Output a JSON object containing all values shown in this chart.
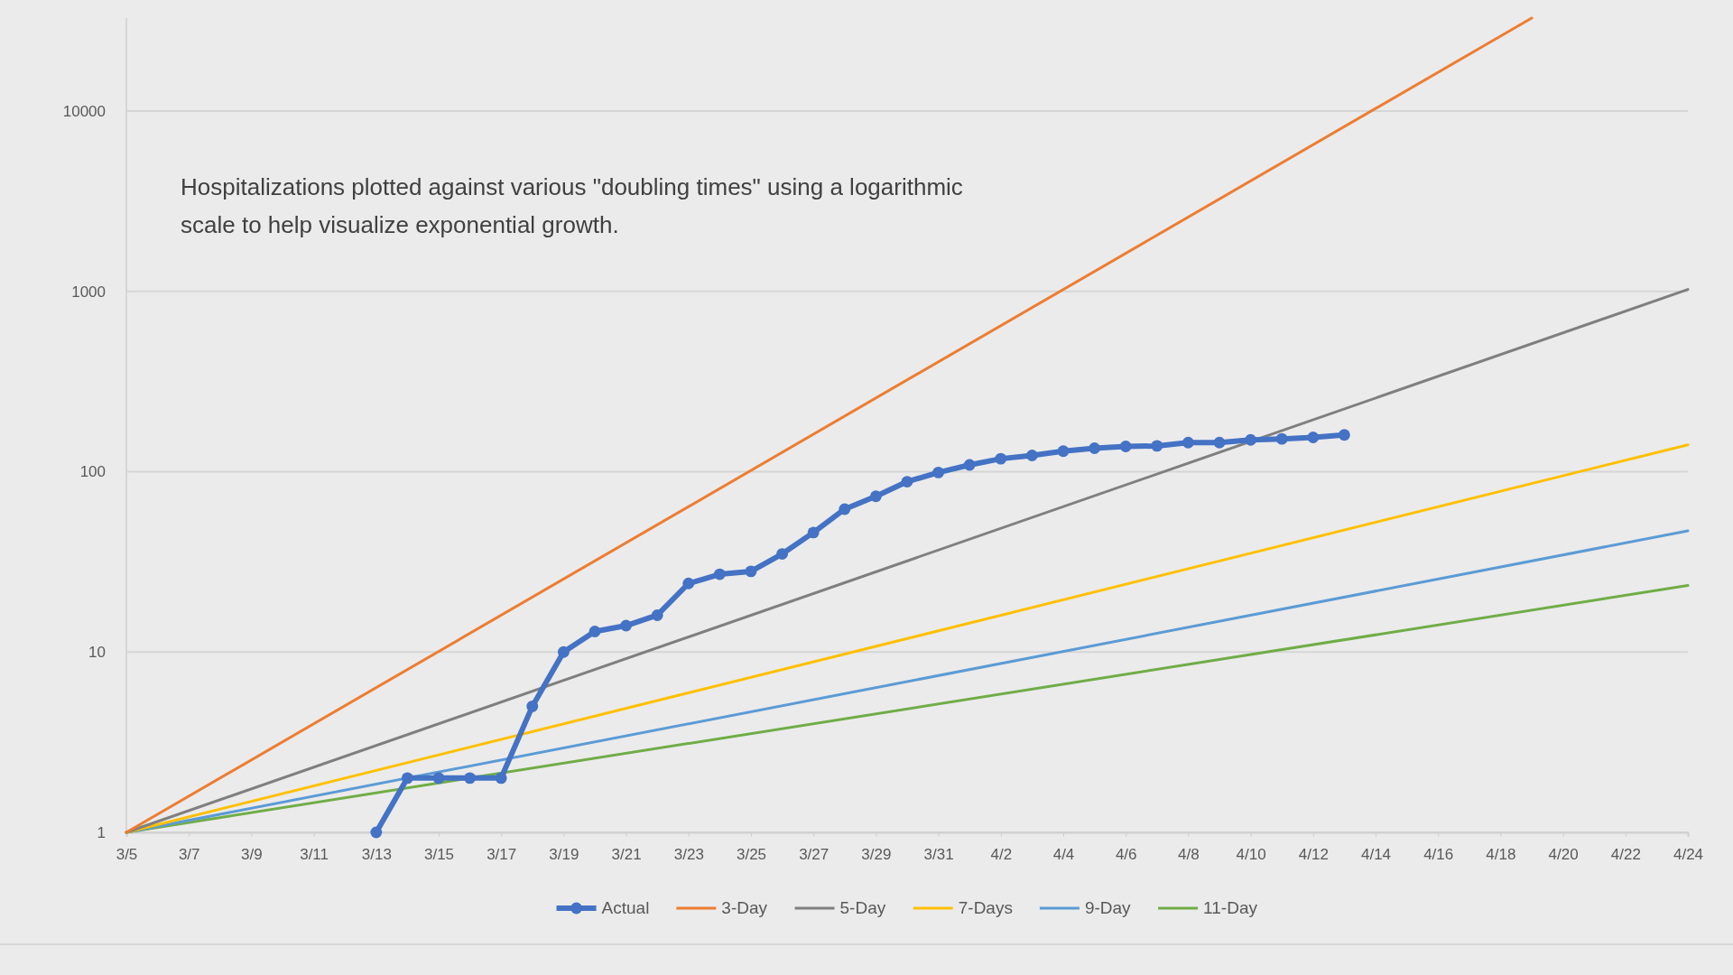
{
  "chart_data": {
    "type": "line",
    "x": [
      "--03-13",
      "--03-14",
      "--03-15",
      "--03-16",
      "--03-17",
      "--03-18",
      "--03-19",
      "--03-20",
      "--03-21",
      "--03-22",
      "--03-23",
      "--03-24",
      "--03-25",
      "--03-26",
      "--03-27",
      "--03-28",
      "--03-29",
      "--03-30",
      "--03-31",
      "--04-01",
      "--04-02",
      "--04-03",
      "--04-04",
      "--04-05",
      "--04-06",
      "--04-07",
      "--04-08",
      "--04-09",
      "--04-10",
      "--04-11",
      "--04-12",
      "--04-13"
    ],
    "series": [
      {
        "name": "Actual",
        "color": "#4472c4",
        "marker": "circle",
        "values": [
          1,
          2,
          2,
          2,
          2,
          5,
          10,
          13,
          14,
          16,
          24,
          27,
          28,
          35,
          46,
          62,
          73,
          88,
          99,
          109,
          118,
          123,
          130,
          135,
          138,
          139,
          145,
          145,
          150,
          152,
          155,
          160
        ]
      },
      {
        "name": "3-Day",
        "color": "#ed7d31",
        "marker": "none",
        "x": [
          "--03-05",
          "--04-19"
        ],
        "values": [
          1,
          32768
        ]
      },
      {
        "name": "5-Day",
        "color": "#7f7f7f",
        "marker": "none",
        "x": [
          "--03-05",
          "--04-24"
        ],
        "values": [
          1,
          1024
        ]
      },
      {
        "name": "7-Days",
        "color": "#ffc000",
        "marker": "none",
        "x": [
          "--03-05",
          "--04-24"
        ],
        "values": [
          1,
          141
        ]
      },
      {
        "name": "9-Day",
        "color": "#5b9bd5",
        "marker": "none",
        "x": [
          "--03-05",
          "--04-24"
        ],
        "values": [
          1,
          47
        ]
      },
      {
        "name": "11-Day",
        "color": "#70ad47",
        "marker": "none",
        "x": [
          "--03-05",
          "--04-24"
        ],
        "values": [
          1,
          23.4
        ]
      }
    ],
    "annotations": [
      "Hospitalizations plotted against various \"doubling times\" using a logarithmic scale to help visualize exponential growth."
    ],
    "log": true,
    "grid": "y",
    "legend": "bottom",
    "xlim": [
      "--03-05",
      "--04-24"
    ],
    "xticks": [
      {
        "value": "--03-05",
        "label": "3/5"
      },
      {
        "value": "--03-07",
        "label": "3/7"
      },
      {
        "value": "--03-09",
        "label": "3/9"
      },
      {
        "value": "--03-11",
        "label": "3/11"
      },
      {
        "value": "--03-13",
        "label": "3/13"
      },
      {
        "value": "--03-15",
        "label": "3/15"
      },
      {
        "value": "--03-17",
        "label": "3/17"
      },
      {
        "value": "--03-19",
        "label": "3/19"
      },
      {
        "value": "--03-21",
        "label": "3/21"
      },
      {
        "value": "--03-23",
        "label": "3/23"
      },
      {
        "value": "--03-25",
        "label": "3/25"
      },
      {
        "value": "--03-27",
        "label": "3/27"
      },
      {
        "value": "--03-29",
        "label": "3/29"
      },
      {
        "value": "--03-31",
        "label": "3/31"
      },
      {
        "value": "--04-02",
        "label": "4/2"
      },
      {
        "value": "--04-04",
        "label": "4/4"
      },
      {
        "value": "--04-06",
        "label": "4/6"
      },
      {
        "value": "--04-08",
        "label": "4/8"
      },
      {
        "value": "--04-10",
        "label": "4/10"
      },
      {
        "value": "--04-12",
        "label": "4/12"
      },
      {
        "value": "--04-14",
        "label": "4/14"
      },
      {
        "value": "--04-16",
        "label": "4/16"
      },
      {
        "value": "--04-18",
        "label": "4/18"
      },
      {
        "value": "--04-20",
        "label": "4/20"
      },
      {
        "value": "--04-22",
        "label": "4/22"
      },
      {
        "value": "--04-24",
        "label": "4/24"
      }
    ],
    "ylim": [
      1,
      32768
    ],
    "yticks": [
      1,
      10,
      100,
      1000,
      10000
    ]
  }
}
